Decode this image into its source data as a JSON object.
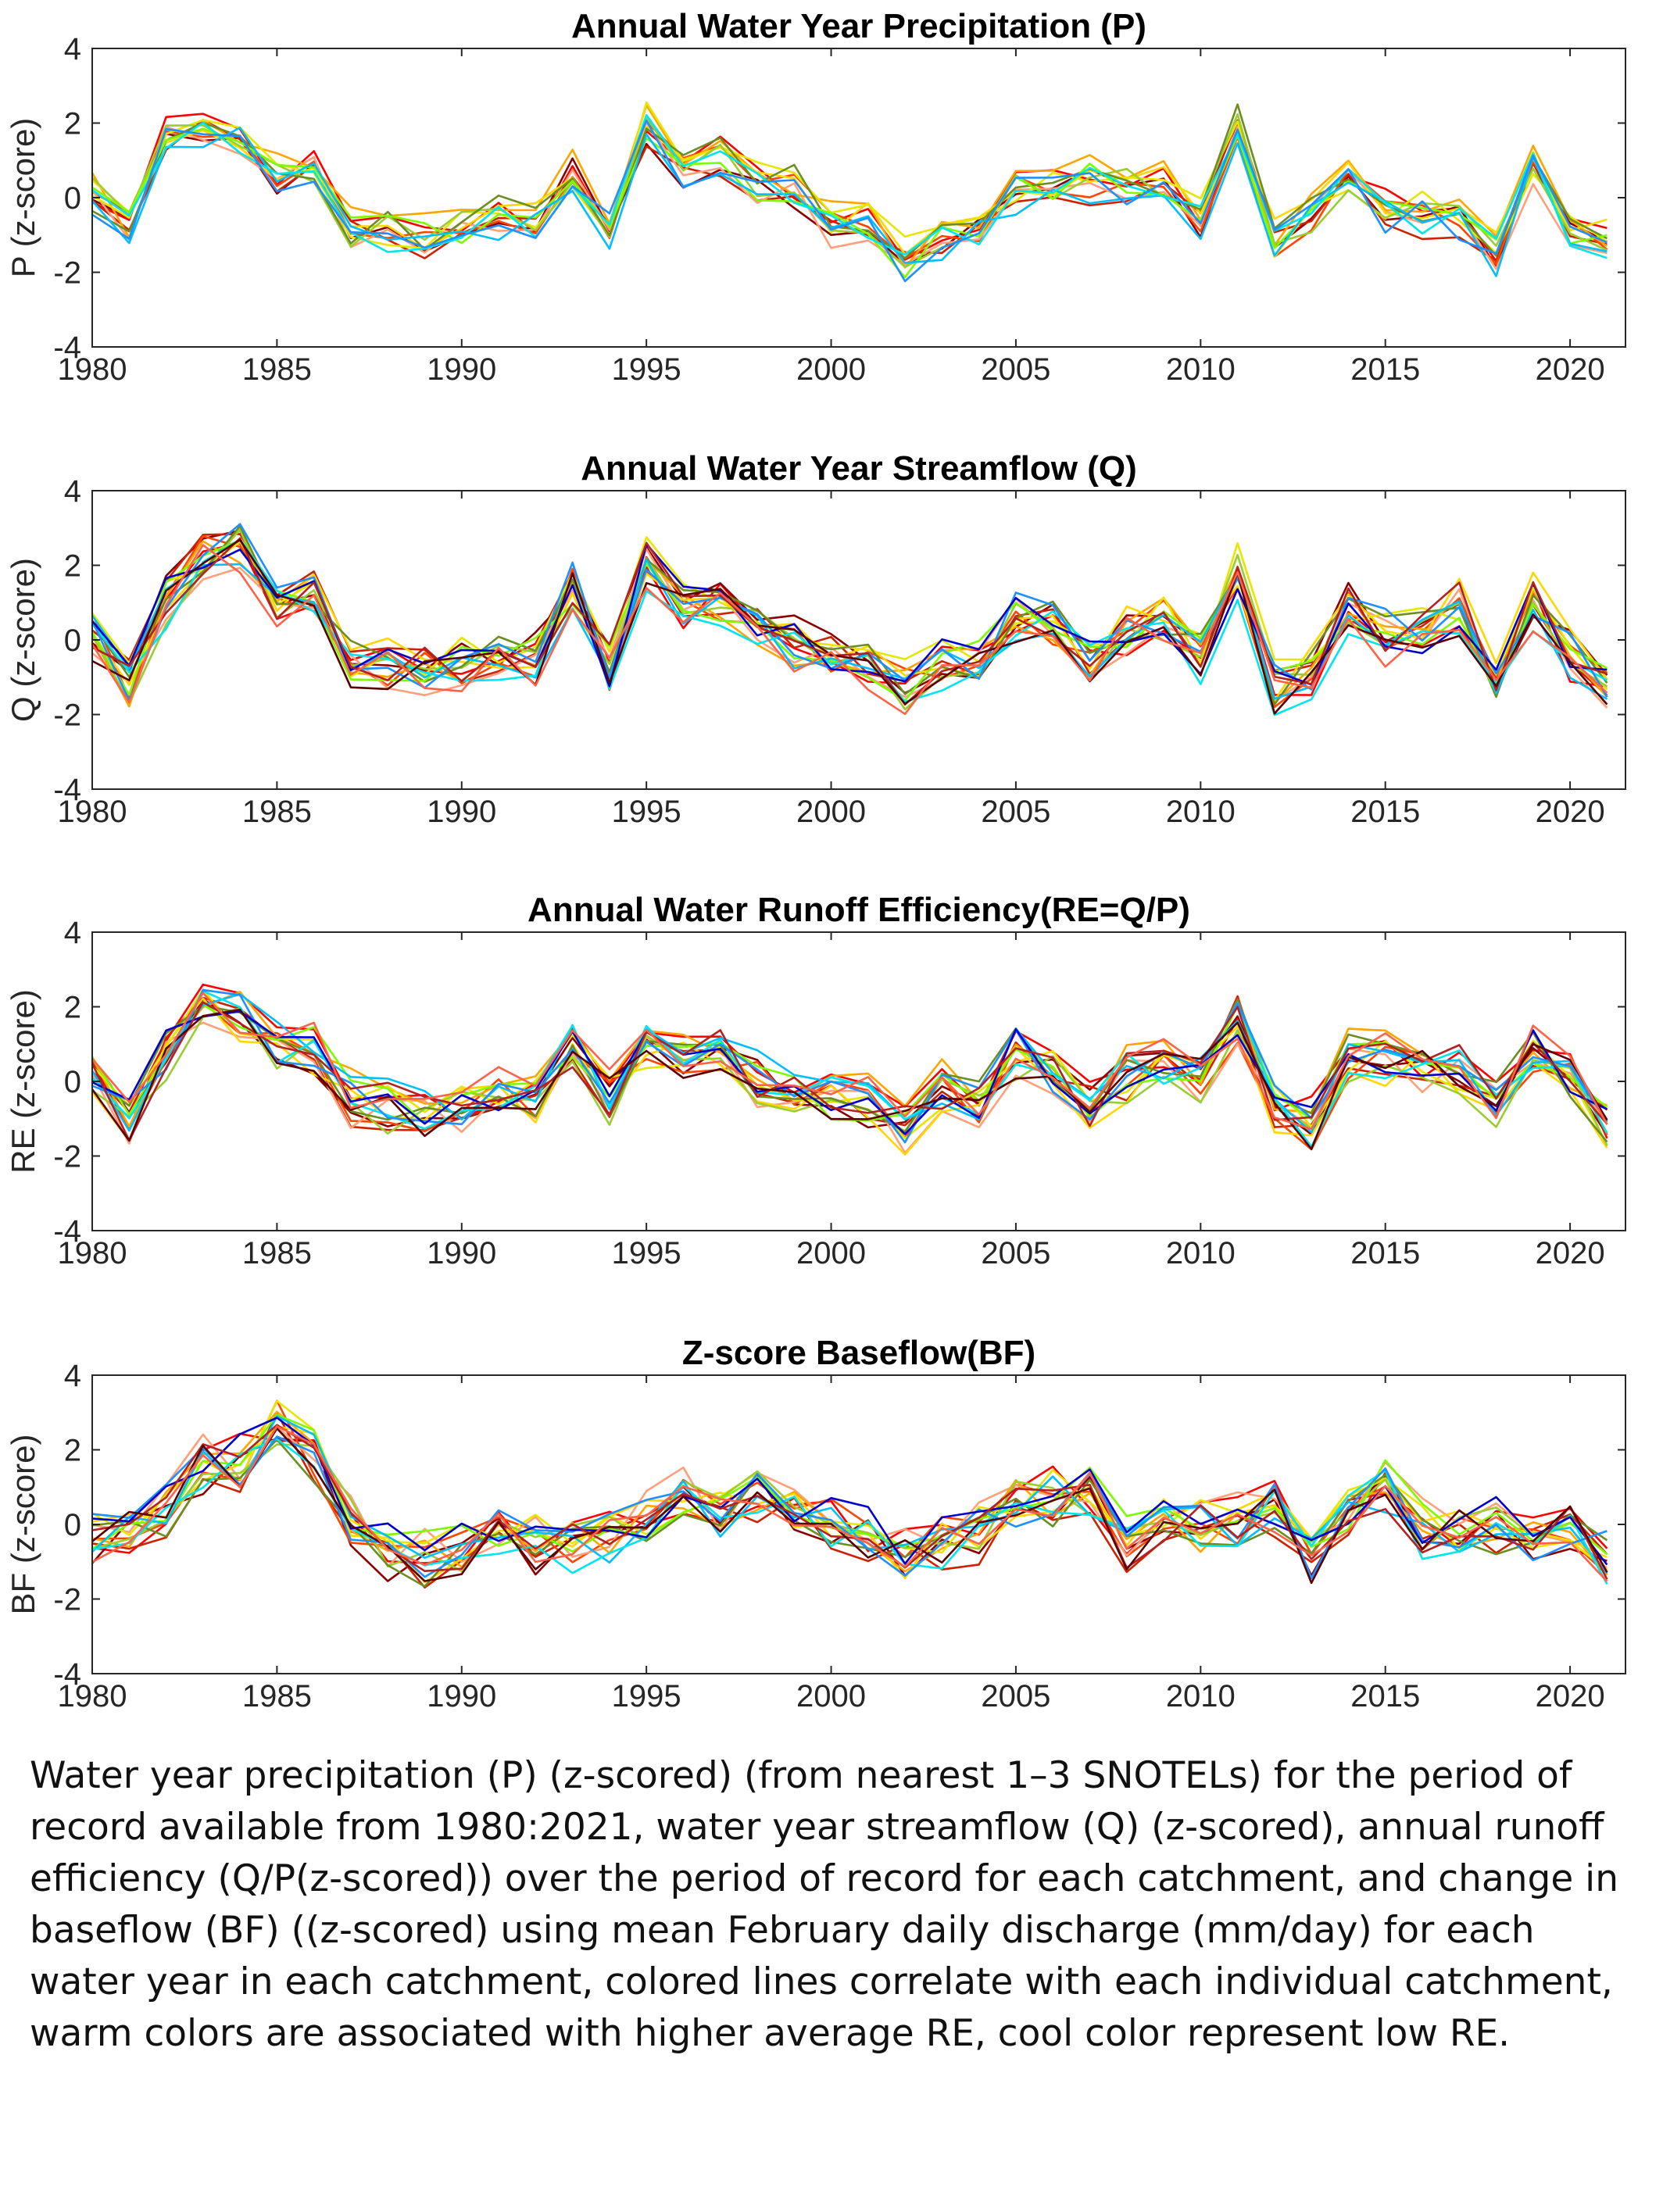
{
  "colors": {
    "catchments": [
      "#ff0000",
      "#8b0000",
      "#cc2200",
      "#ff4500",
      "#ffa07a",
      "#ffa500",
      "#ffd700",
      "#e6e600",
      "#9acd32",
      "#6b8e23",
      "#7cfc00",
      "#00bfff",
      "#00e5ee",
      "#1e90ff",
      "#0000cd",
      "#b22222",
      "#5a0000",
      "#ff6347"
    ]
  },
  "chart_data": [
    {
      "type": "line",
      "title": "Annual Water Year Precipitation (P)",
      "ylabel": "P (z-score)",
      "xlim": [
        1980,
        2021.5
      ],
      "ylim": [
        -4,
        4
      ],
      "xticks": [
        1980,
        1985,
        1990,
        1995,
        2000,
        2005,
        2010,
        2015,
        2020
      ],
      "yticks": [
        -4,
        -2,
        0,
        2,
        4
      ],
      "x_start": 1980,
      "anchor": [
        0.0,
        -0.8,
        1.6,
        2.0,
        1.6,
        0.6,
        0.8,
        -0.9,
        -0.9,
        -1.1,
        -0.8,
        -0.5,
        -0.7,
        0.7,
        -0.7,
        2.0,
        0.6,
        1.2,
        0.4,
        0.3,
        -0.7,
        -0.6,
        -1.6,
        -1.0,
        -0.8,
        0.2,
        0.3,
        0.5,
        0.3,
        0.4,
        -0.5,
        2.0,
        -1.2,
        -0.5,
        0.5,
        -0.3,
        -0.4,
        -0.6,
        -1.5,
        1.0,
        -1.0,
        -1.2
      ],
      "spread": 0.45,
      "n_series": 14,
      "grid": false,
      "legend": "none"
    },
    {
      "type": "line",
      "title": "Annual Water Year Streamflow (Q)",
      "ylabel": "Q (z-score)",
      "xlim": [
        1980,
        2021.5
      ],
      "ylim": [
        -4,
        4
      ],
      "xticks": [
        1980,
        1985,
        1990,
        1995,
        2000,
        2005,
        2010,
        2015,
        2020
      ],
      "yticks": [
        -4,
        -2,
        0,
        2,
        4
      ],
      "x_start": 1980,
      "anchor": [
        0.2,
        -1.2,
        1.0,
        2.2,
        2.4,
        1.0,
        1.2,
        -0.7,
        -0.7,
        -0.9,
        -0.7,
        -0.4,
        -0.5,
        1.4,
        -0.8,
        2.0,
        0.8,
        1.0,
        0.3,
        -0.1,
        -0.5,
        -0.6,
        -1.3,
        -0.6,
        -0.7,
        0.6,
        0.4,
        -0.5,
        0.2,
        0.6,
        -0.5,
        1.8,
        -1.3,
        -0.9,
        0.8,
        0.1,
        0.1,
        0.8,
        -1.2,
        1.0,
        -0.5,
        -1.4
      ],
      "spread": 0.55,
      "n_series": 18,
      "grid": false,
      "legend": "none"
    },
    {
      "type": "line",
      "title": "Annual Water Runoff Efficiency(RE=Q/P)",
      "ylabel": "RE (z-score)",
      "xlim": [
        1980,
        2021.5
      ],
      "ylim": [
        -4,
        4
      ],
      "xticks": [
        1980,
        1985,
        1990,
        1995,
        2000,
        2005,
        2010,
        2015,
        2020
      ],
      "yticks": [
        -4,
        -2,
        0,
        2,
        4
      ],
      "x_start": 1980,
      "anchor": [
        0.2,
        -1.0,
        0.8,
        2.0,
        1.7,
        1.0,
        0.9,
        -0.5,
        -0.6,
        -0.8,
        -0.6,
        -0.3,
        -0.5,
        0.9,
        -0.4,
        0.9,
        0.8,
        1.0,
        0.1,
        -0.3,
        -0.5,
        -0.6,
        -1.2,
        -0.2,
        -0.6,
        0.8,
        0.3,
        -0.6,
        0.2,
        0.5,
        0.2,
        1.6,
        -0.6,
        -1.2,
        0.6,
        0.6,
        0.5,
        0.4,
        -0.6,
        0.8,
        0.1,
        -1.2
      ],
      "spread": 0.55,
      "n_series": 18,
      "grid": false,
      "legend": "none"
    },
    {
      "type": "line",
      "title": "Z-score Baseflow(BF)",
      "ylabel": "BF (z-score)",
      "xlim": [
        1980,
        2021.5
      ],
      "ylim": [
        -4,
        4
      ],
      "xticks": [
        1980,
        1985,
        1990,
        1995,
        2000,
        2005,
        2010,
        2015,
        2020
      ],
      "yticks": [
        -4,
        -2,
        0,
        2,
        4
      ],
      "x_start": 1980,
      "anchor": [
        -0.4,
        -0.3,
        0.4,
        1.5,
        1.6,
        2.6,
        1.8,
        0.0,
        -0.8,
        -1.0,
        -0.8,
        -0.3,
        -0.6,
        -0.6,
        -0.4,
        0.0,
        0.6,
        0.2,
        0.8,
        0.2,
        0.0,
        -0.4,
        -0.8,
        -0.5,
        -0.3,
        0.5,
        0.7,
        0.8,
        -0.6,
        0.0,
        -0.2,
        0.0,
        0.4,
        -1.0,
        0.3,
        0.9,
        -0.2,
        -0.3,
        -0.1,
        -0.6,
        -0.2,
        -0.9
      ],
      "spread": 0.6,
      "n_series": 18,
      "grid": false,
      "legend": "none"
    }
  ],
  "caption": "Water year precipitation (P) (z-scored) (from nearest 1–3 SNOTELs) for the period of record available from 1980:2021, water year streamflow (Q) (z-scored), annual runoff efficiency (Q/P(z-scored)) over the period of record for each catchment, and change in baseflow (BF) ((z-scored) using mean February daily discharge (mm/day) for each water year in each catchment, colored lines correlate with each individual catchment, warm colors are associated with higher average RE, cool color represent low RE."
}
